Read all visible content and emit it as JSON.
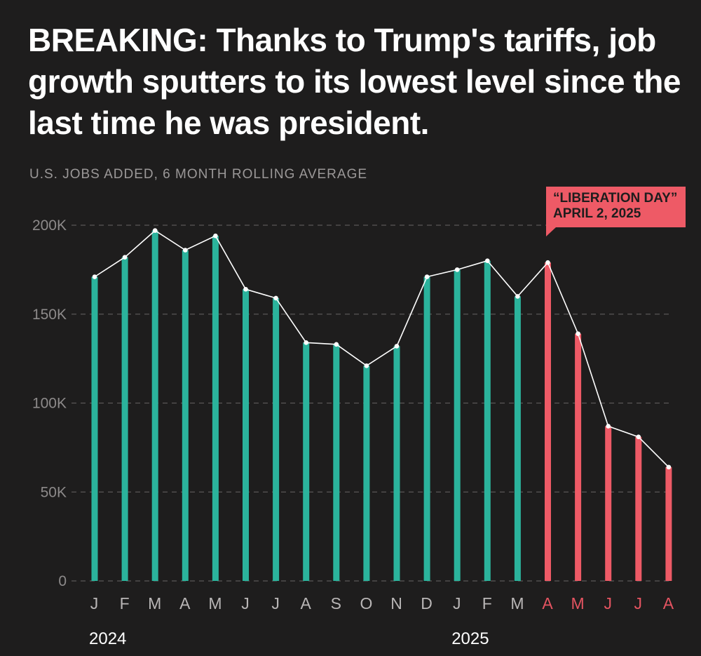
{
  "headline": "BREAKING: Thanks to Trump's tariffs, job growth sputters to its lowest level since the last time he was president.",
  "subtitle": "U.S. JOBS ADDED, 6 MONTH ROLLING AVERAGE",
  "callout": {
    "line1": "“LIBERATION DAY”",
    "line2": "APRIL 2, 2025"
  },
  "colors": {
    "background": "#1e1d1d",
    "bar_before": "#2bb39c",
    "bar_after": "#ee5a66",
    "line": "#ffffff",
    "grid": "#5a5757"
  },
  "chart_data": {
    "type": "bar",
    "title": "U.S. JOBS ADDED, 6 MONTH ROLLING AVERAGE",
    "categories": [
      "J",
      "F",
      "M",
      "A",
      "M",
      "J",
      "J",
      "A",
      "S",
      "O",
      "N",
      "D",
      "J",
      "F",
      "M",
      "A",
      "M",
      "J",
      "J",
      "A"
    ],
    "years": [
      {
        "label": "2024",
        "start_index": 0
      },
      {
        "label": "2025",
        "start_index": 12
      }
    ],
    "values": [
      171,
      182,
      197,
      186,
      194,
      164,
      159,
      134,
      133,
      121,
      132,
      171,
      175,
      180,
      160,
      179,
      139,
      87,
      81,
      64
    ],
    "value_unit": "thousands",
    "highlight_from_index": 15,
    "ylim": [
      0,
      200
    ],
    "yticks": [
      0,
      50,
      100,
      150,
      200
    ],
    "ytick_labels": [
      "0",
      "50K",
      "100K",
      "150K",
      "200K"
    ],
    "line_overlay": true,
    "grid": "dashed horizontal"
  }
}
